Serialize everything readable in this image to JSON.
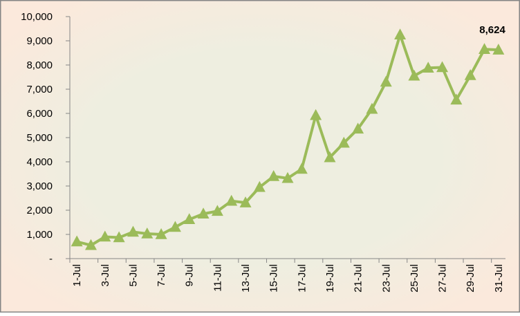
{
  "colors": {
    "chart_area_bg": "#FBE9DC",
    "plot_glow": "#EEEEE0",
    "series": "#9BBB59",
    "border": "#868686",
    "axis": "#868686"
  },
  "chart_data": {
    "type": "line",
    "title": "",
    "xlabel": "",
    "ylabel": "",
    "ylim": [
      0,
      10000
    ],
    "grid": false,
    "legend": "none",
    "marker": "triangle",
    "x": [
      "1-Jul",
      "2-Jul",
      "3-Jul",
      "4-Jul",
      "5-Jul",
      "6-Jul",
      "7-Jul",
      "8-Jul",
      "9-Jul",
      "10-Jul",
      "11-Jul",
      "12-Jul",
      "13-Jul",
      "14-Jul",
      "15-Jul",
      "16-Jul",
      "17-Jul",
      "18-Jul",
      "19-Jul",
      "20-Jul",
      "21-Jul",
      "22-Jul",
      "23-Jul",
      "24-Jul",
      "25-Jul",
      "26-Jul",
      "27-Jul",
      "28-Jul",
      "29-Jul",
      "30-Jul",
      "31-Jul"
    ],
    "x_tick_labels": [
      "1-Jul",
      "3-Jul",
      "5-Jul",
      "7-Jul",
      "9-Jul",
      "11-Jul",
      "13-Jul",
      "15-Jul",
      "17-Jul",
      "19-Jul",
      "21-Jul",
      "23-Jul",
      "25-Jul",
      "27-Jul",
      "29-Jul",
      "31-Jul"
    ],
    "y_tick_labels": [
      "-",
      "1,000",
      "2,000",
      "3,000",
      "4,000",
      "5,000",
      "6,000",
      "7,000",
      "8,000",
      "9,000",
      "10,000"
    ],
    "y_tick_values": [
      0,
      1000,
      2000,
      3000,
      4000,
      5000,
      6000,
      7000,
      8000,
      9000,
      10000
    ],
    "series": [
      {
        "values": [
          700,
          550,
          900,
          870,
          1100,
          1030,
          1000,
          1300,
          1620,
          1850,
          1960,
          2380,
          2310,
          2950,
          3400,
          3320,
          3700,
          5920,
          4180,
          4780,
          5360,
          6180,
          7300,
          9250,
          7550,
          7880,
          7900,
          6560,
          7570,
          8650,
          8624
        ]
      }
    ],
    "data_labels": [
      {
        "index": 30,
        "text": "8,624"
      }
    ]
  }
}
